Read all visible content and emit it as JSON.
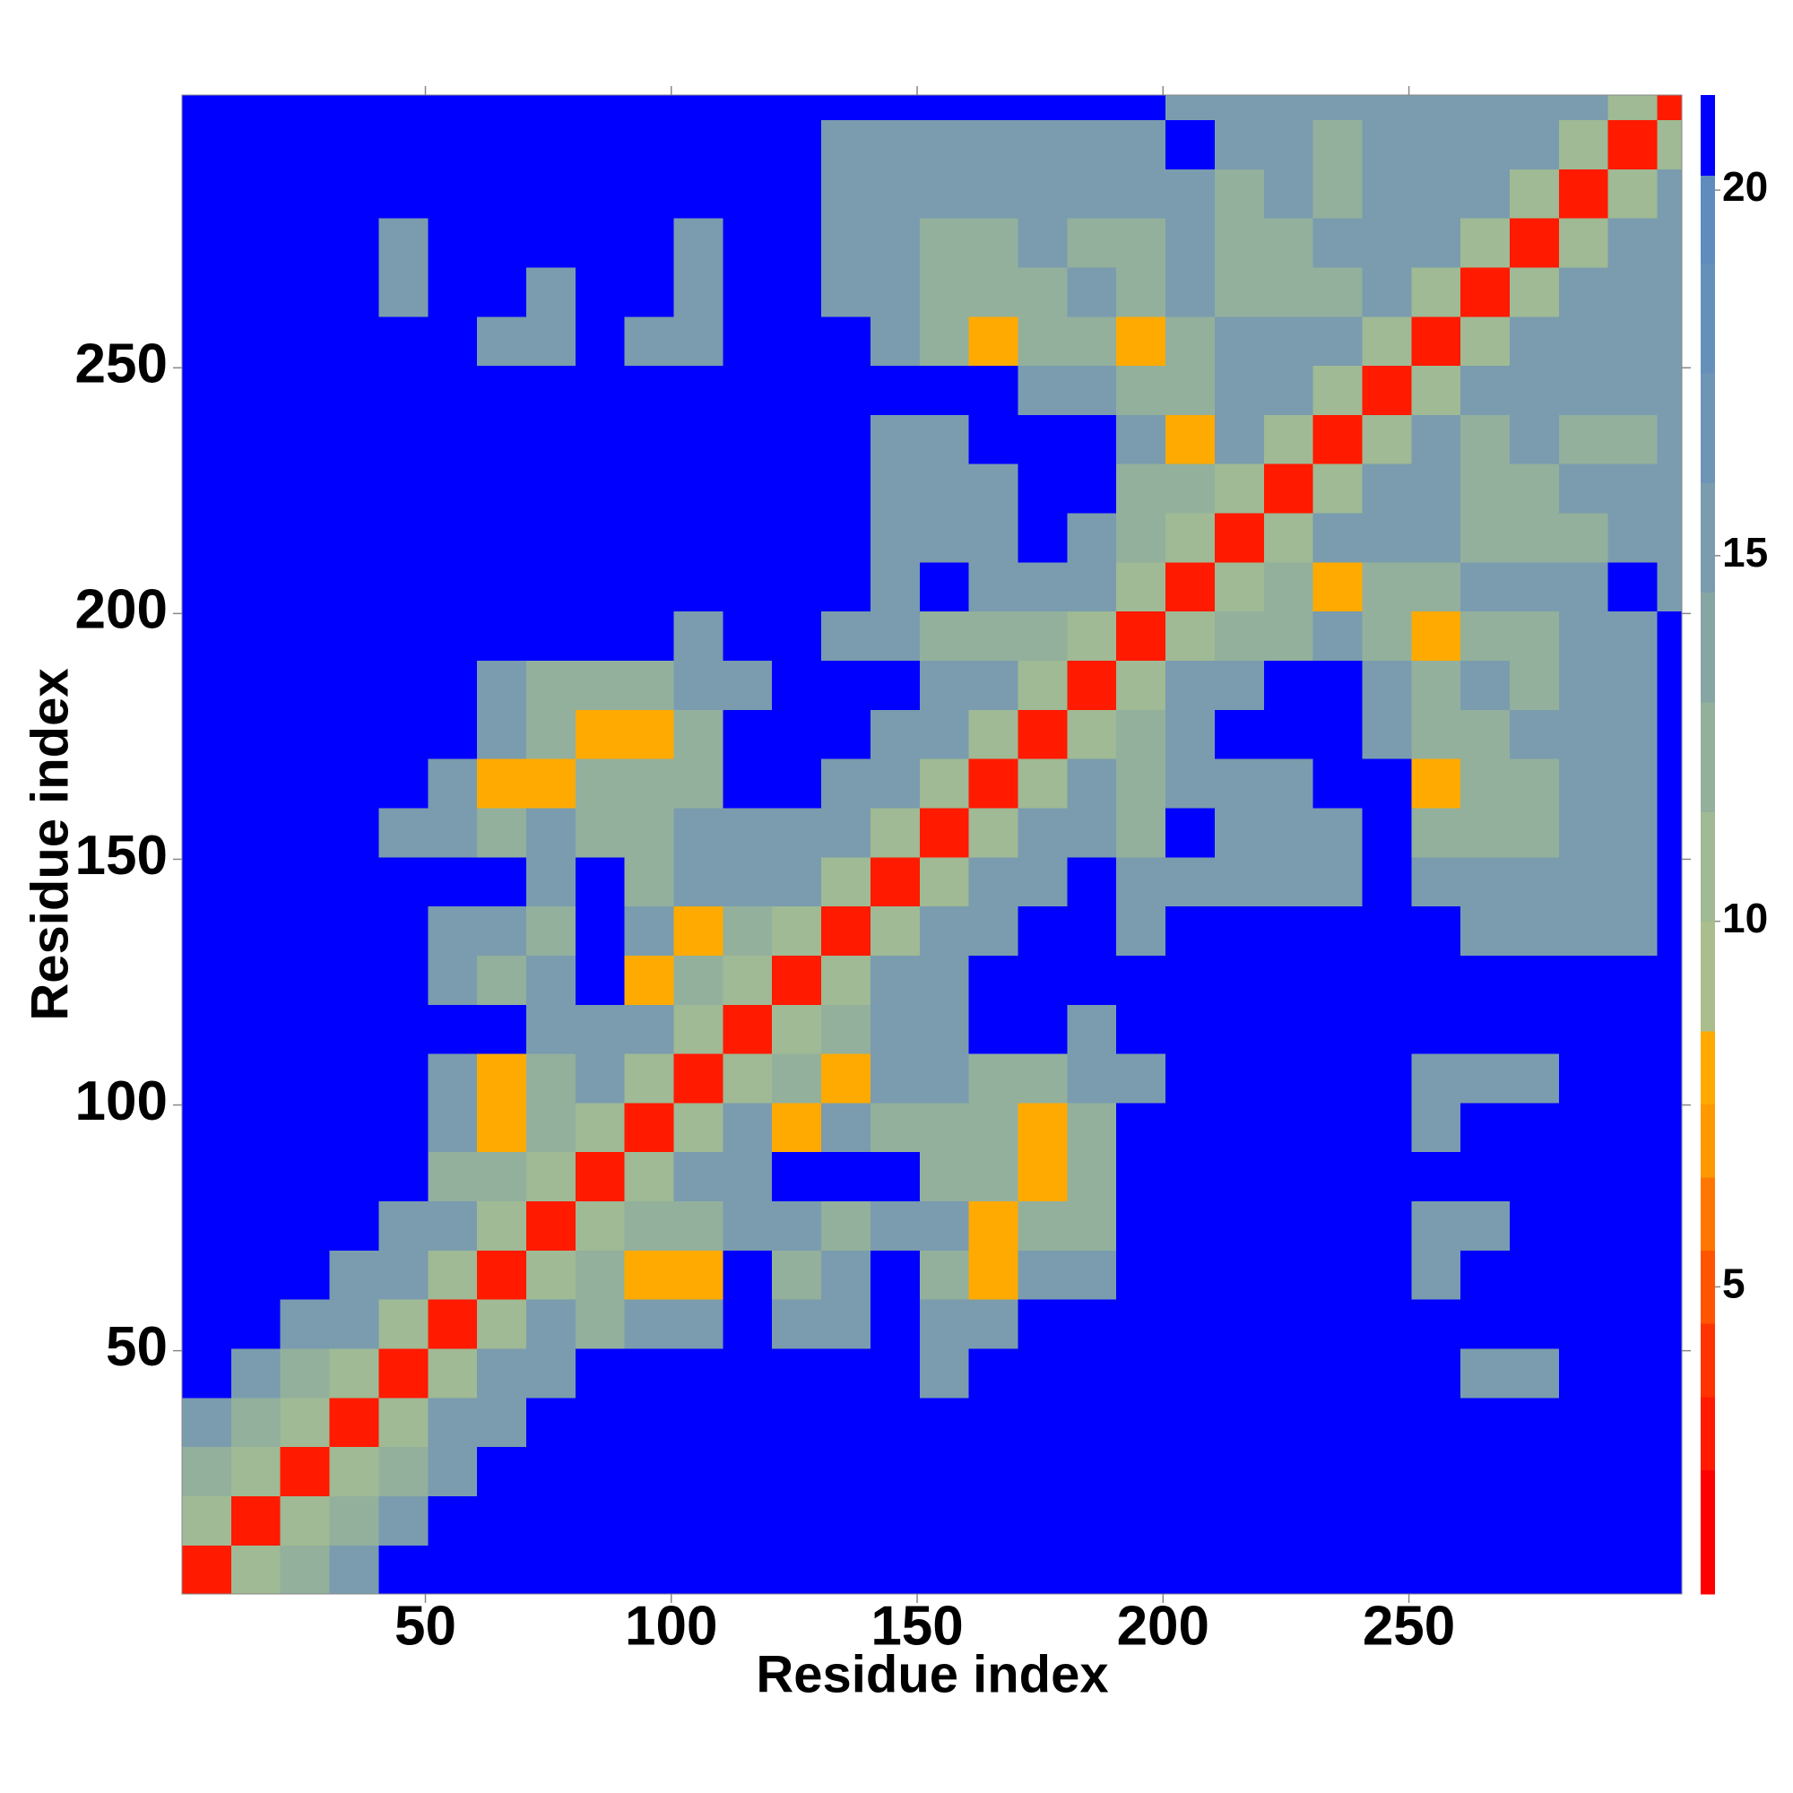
{
  "chart_data": {
    "type": "heatmap",
    "xlabel": "Residue index",
    "ylabel": "Residue index",
    "xlim": [
      0.5,
      305.5
    ],
    "ylim": [
      0.5,
      305.5
    ],
    "xticks": [
      50,
      100,
      150,
      200,
      250
    ],
    "yticks": [
      50,
      100,
      150,
      200,
      250
    ],
    "xbins": [
      0.5,
      10.5,
      20.5,
      30.5,
      40.5,
      50.5,
      60.5,
      70.5,
      80.5,
      90.5,
      100.5,
      110.5,
      120.5,
      130.5,
      140.5,
      150.5,
      160.5,
      170.5,
      180.5,
      190.5,
      200.5,
      210.5,
      220.5,
      230.5,
      240.5,
      250.5,
      260.5,
      270.5,
      280.5,
      290.5,
      300.5,
      305.5
    ],
    "ybins": [
      0.5,
      10.5,
      20.5,
      30.5,
      40.5,
      50.5,
      60.5,
      70.5,
      80.5,
      90.5,
      100.5,
      110.5,
      120.5,
      130.5,
      140.5,
      150.5,
      160.5,
      170.5,
      180.5,
      190.5,
      200.5,
      210.5,
      220.5,
      230.5,
      240.5,
      250.5,
      260.5,
      270.5,
      280.5,
      290.5,
      300.5,
      305.5
    ],
    "values": [
      [
        3,
        11,
        12,
        16,
        21,
        21,
        21,
        21,
        21,
        21,
        21,
        21,
        21,
        21,
        21,
        21,
        21,
        21,
        21,
        21,
        21,
        21,
        21,
        21,
        21,
        21,
        21,
        21,
        21,
        21,
        21
      ],
      [
        11,
        3,
        11,
        12,
        16,
        21,
        21,
        21,
        21,
        21,
        21,
        21,
        21,
        21,
        21,
        21,
        21,
        21,
        21,
        21,
        21,
        21,
        21,
        21,
        21,
        21,
        21,
        21,
        21,
        21,
        21
      ],
      [
        12,
        11,
        3,
        11,
        12,
        16,
        21,
        21,
        21,
        21,
        21,
        21,
        21,
        21,
        21,
        21,
        21,
        21,
        21,
        21,
        21,
        21,
        21,
        21,
        21,
        21,
        21,
        21,
        21,
        21,
        21
      ],
      [
        16,
        12,
        11,
        3,
        11,
        16,
        16,
        21,
        21,
        21,
        21,
        21,
        21,
        21,
        21,
        21,
        21,
        21,
        21,
        21,
        21,
        21,
        21,
        21,
        21,
        21,
        21,
        21,
        21,
        21,
        21
      ],
      [
        21,
        16,
        12,
        11,
        3,
        11,
        16,
        16,
        21,
        21,
        21,
        21,
        21,
        21,
        21,
        16,
        21,
        21,
        21,
        21,
        21,
        21,
        21,
        21,
        21,
        21,
        16,
        16,
        21,
        21,
        21
      ],
      [
        21,
        21,
        16,
        16,
        11,
        3,
        11,
        16,
        12,
        16,
        16,
        21,
        16,
        16,
        21,
        16,
        16,
        21,
        21,
        21,
        21,
        21,
        21,
        21,
        21,
        21,
        21,
        21,
        21,
        21,
        21
      ],
      [
        21,
        21,
        21,
        16,
        16,
        11,
        3,
        11,
        12,
        8,
        8,
        21,
        12,
        16,
        21,
        12,
        8,
        16,
        16,
        21,
        21,
        21,
        21,
        21,
        21,
        16,
        21,
        21,
        21,
        21,
        21
      ],
      [
        21,
        21,
        21,
        21,
        16,
        16,
        11,
        3,
        11,
        12,
        12,
        16,
        16,
        12,
        16,
        16,
        8,
        12,
        12,
        21,
        21,
        21,
        21,
        21,
        21,
        16,
        16,
        21,
        21,
        21,
        21
      ],
      [
        21,
        21,
        21,
        21,
        21,
        12,
        12,
        11,
        3,
        11,
        16,
        16,
        21,
        21,
        21,
        12,
        12,
        8,
        12,
        21,
        21,
        21,
        21,
        21,
        21,
        21,
        21,
        21,
        21,
        21,
        21
      ],
      [
        21,
        21,
        21,
        21,
        21,
        16,
        8,
        12,
        11,
        3,
        11,
        16,
        8,
        16,
        12,
        12,
        12,
        8,
        12,
        21,
        21,
        21,
        21,
        21,
        21,
        16,
        21,
        21,
        21,
        21,
        21
      ],
      [
        21,
        21,
        21,
        21,
        21,
        16,
        8,
        12,
        16,
        11,
        3,
        11,
        12,
        8,
        16,
        16,
        12,
        12,
        16,
        16,
        21,
        21,
        21,
        21,
        21,
        16,
        16,
        16,
        21,
        21,
        21
      ],
      [
        21,
        21,
        21,
        21,
        21,
        21,
        21,
        16,
        16,
        16,
        11,
        3,
        11,
        12,
        16,
        16,
        21,
        21,
        16,
        21,
        21,
        21,
        21,
        21,
        21,
        21,
        21,
        21,
        21,
        21,
        21
      ],
      [
        21,
        21,
        21,
        21,
        21,
        16,
        12,
        16,
        21,
        8,
        12,
        11,
        3,
        11,
        16,
        16,
        21,
        21,
        21,
        21,
        21,
        21,
        21,
        21,
        21,
        21,
        21,
        21,
        21,
        21,
        21
      ],
      [
        21,
        21,
        21,
        21,
        21,
        16,
        16,
        12,
        21,
        16,
        8,
        12,
        11,
        3,
        11,
        16,
        16,
        21,
        21,
        16,
        21,
        21,
        21,
        21,
        21,
        21,
        16,
        16,
        16,
        16,
        21
      ],
      [
        21,
        21,
        21,
        21,
        21,
        21,
        21,
        16,
        21,
        12,
        16,
        16,
        16,
        11,
        3,
        11,
        16,
        16,
        21,
        16,
        16,
        16,
        16,
        16,
        21,
        16,
        16,
        16,
        16,
        16,
        21
      ],
      [
        21,
        21,
        21,
        21,
        16,
        16,
        12,
        16,
        12,
        12,
        16,
        16,
        16,
        16,
        11,
        3,
        11,
        16,
        16,
        12,
        21,
        16,
        16,
        16,
        21,
        12,
        12,
        12,
        16,
        16,
        21
      ],
      [
        21,
        21,
        21,
        21,
        21,
        16,
        8,
        8,
        12,
        12,
        12,
        21,
        21,
        16,
        16,
        11,
        3,
        11,
        16,
        12,
        16,
        16,
        16,
        21,
        21,
        8,
        12,
        12,
        16,
        16,
        21
      ],
      [
        21,
        21,
        21,
        21,
        21,
        21,
        16,
        12,
        8,
        8,
        12,
        21,
        21,
        21,
        16,
        16,
        11,
        3,
        11,
        12,
        16,
        21,
        21,
        21,
        16,
        12,
        12,
        16,
        16,
        16,
        21
      ],
      [
        21,
        21,
        21,
        21,
        21,
        21,
        16,
        12,
        12,
        12,
        16,
        16,
        21,
        21,
        21,
        16,
        16,
        11,
        3,
        11,
        16,
        16,
        21,
        21,
        16,
        12,
        16,
        12,
        16,
        16,
        21
      ],
      [
        21,
        21,
        21,
        21,
        21,
        21,
        21,
        21,
        21,
        21,
        16,
        21,
        21,
        16,
        16,
        12,
        12,
        12,
        11,
        3,
        11,
        12,
        12,
        16,
        12,
        8,
        12,
        12,
        16,
        16,
        21
      ],
      [
        21,
        21,
        21,
        21,
        21,
        21,
        21,
        21,
        21,
        21,
        21,
        21,
        21,
        21,
        16,
        21,
        16,
        16,
        16,
        11,
        3,
        11,
        12,
        8,
        12,
        12,
        16,
        16,
        16,
        21,
        16
      ],
      [
        21,
        21,
        21,
        21,
        21,
        21,
        21,
        21,
        21,
        21,
        21,
        21,
        21,
        21,
        16,
        16,
        16,
        21,
        16,
        12,
        11,
        3,
        11,
        16,
        16,
        16,
        12,
        12,
        12,
        16,
        16
      ],
      [
        21,
        21,
        21,
        21,
        21,
        21,
        21,
        21,
        21,
        21,
        21,
        21,
        21,
        21,
        16,
        16,
        16,
        21,
        21,
        12,
        12,
        11,
        3,
        11,
        16,
        16,
        12,
        12,
        16,
        16,
        16
      ],
      [
        21,
        21,
        21,
        21,
        21,
        21,
        21,
        21,
        21,
        21,
        21,
        21,
        21,
        21,
        16,
        16,
        21,
        21,
        21,
        16,
        8,
        16,
        11,
        3,
        11,
        16,
        12,
        16,
        12,
        12,
        16
      ],
      [
        21,
        21,
        21,
        21,
        21,
        21,
        21,
        21,
        21,
        21,
        21,
        21,
        21,
        21,
        21,
        21,
        21,
        16,
        16,
        12,
        12,
        16,
        16,
        11,
        3,
        11,
        16,
        16,
        16,
        16,
        16
      ],
      [
        21,
        21,
        21,
        21,
        21,
        21,
        16,
        16,
        21,
        16,
        16,
        21,
        21,
        21,
        16,
        12,
        8,
        12,
        12,
        8,
        12,
        16,
        16,
        16,
        11,
        3,
        11,
        16,
        16,
        16,
        16
      ],
      [
        21,
        21,
        21,
        21,
        16,
        21,
        21,
        16,
        21,
        21,
        16,
        21,
        21,
        16,
        16,
        12,
        12,
        12,
        16,
        12,
        16,
        12,
        12,
        12,
        16,
        11,
        3,
        11,
        16,
        16,
        16
      ],
      [
        21,
        21,
        21,
        21,
        16,
        21,
        21,
        21,
        21,
        21,
        16,
        21,
        21,
        16,
        16,
        12,
        12,
        16,
        12,
        12,
        16,
        12,
        12,
        16,
        16,
        16,
        11,
        3,
        11,
        16,
        16
      ],
      [
        21,
        21,
        21,
        21,
        21,
        21,
        21,
        21,
        21,
        21,
        21,
        21,
        21,
        16,
        16,
        16,
        16,
        16,
        16,
        16,
        16,
        12,
        16,
        12,
        16,
        16,
        16,
        11,
        3,
        11,
        16
      ],
      [
        21,
        21,
        21,
        21,
        21,
        21,
        21,
        21,
        21,
        21,
        21,
        21,
        21,
        16,
        16,
        16,
        16,
        16,
        16,
        16,
        21,
        16,
        16,
        12,
        16,
        16,
        16,
        16,
        11,
        3,
        11
      ],
      [
        21,
        21,
        21,
        21,
        21,
        21,
        21,
        21,
        21,
        21,
        21,
        21,
        21,
        21,
        21,
        21,
        21,
        21,
        21,
        21,
        16,
        16,
        16,
        16,
        16,
        16,
        16,
        16,
        16,
        11,
        3
      ]
    ],
    "colorscale": [
      [
        2.5,
        "#ff0000"
      ],
      [
        3.5,
        "#ff1a00"
      ],
      [
        4.5,
        "#ff3300"
      ],
      [
        5.5,
        "#ff5500"
      ],
      [
        6.5,
        "#ff7700"
      ],
      [
        7.5,
        "#ff9900"
      ],
      [
        8.5,
        "#ffaa00"
      ],
      [
        10,
        "#a9be8c"
      ],
      [
        11.5,
        "#9fba94"
      ],
      [
        13,
        "#93b09c"
      ],
      [
        14.5,
        "#86a6a4"
      ],
      [
        16,
        "#7a9cae"
      ],
      [
        17.5,
        "#6e94b6"
      ],
      [
        19,
        "#6590ba"
      ],
      [
        20.2,
        "#5e8cbd"
      ],
      [
        21.3,
        "#0000ff"
      ]
    ],
    "zlim": [
      0.8,
      21.3
    ],
    "zticks": [
      5,
      10,
      15,
      20
    ]
  }
}
